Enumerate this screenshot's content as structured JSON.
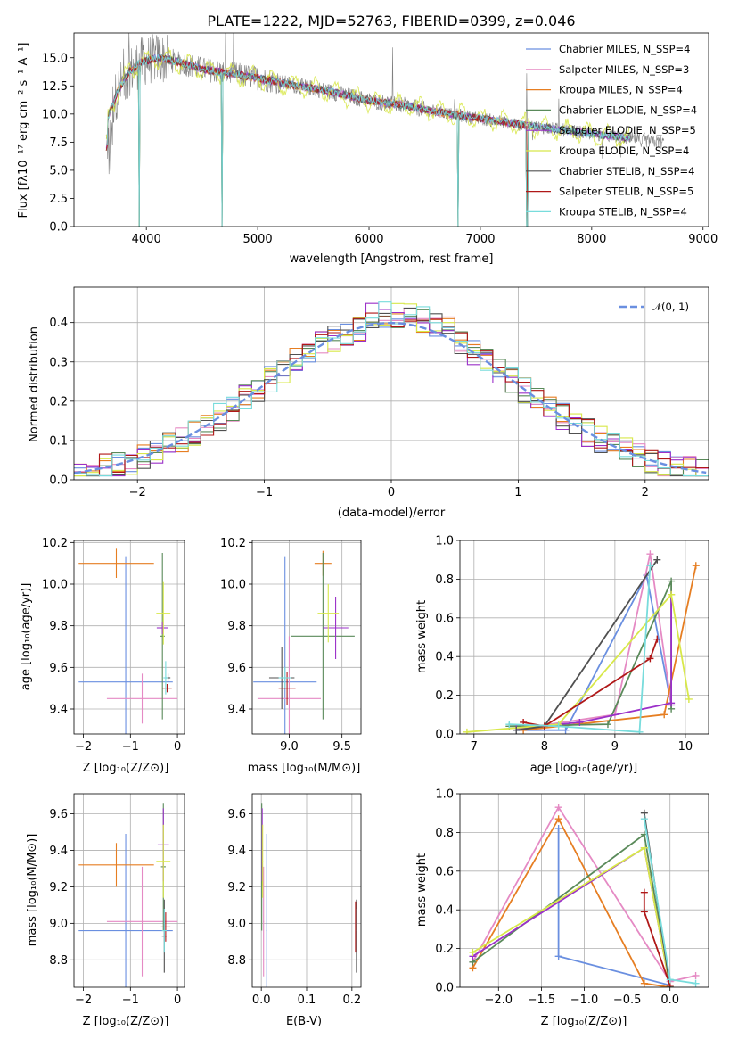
{
  "colors": {
    "spectrum": "#808080",
    "series": [
      "#6a8fe0",
      "#e58ac4",
      "#e67e22",
      "#5a8a5a",
      "#9b30c9",
      "#d8e84a",
      "#505050",
      "#b01818",
      "#78dcdc"
    ]
  },
  "chart_data": [
    {
      "id": "spectrum",
      "type": "line",
      "title": "PLATE=1222, MJD=52763, FIBERID=0399, z=0.046",
      "xlabel": "wavelength [Angstrom, rest frame]",
      "ylabel": "Flux [fλ10⁻¹⁷ erg cm⁻² s⁻¹ A⁻¹]",
      "xlim": [
        3350,
        9050
      ],
      "ylim": [
        0,
        17.2
      ],
      "xticks": [
        "4000",
        "5000",
        "6000",
        "7000",
        "8000",
        "9000"
      ],
      "yticks": [
        "0.0",
        "2.5",
        "5.0",
        "7.5",
        "10.0",
        "12.5",
        "15.0"
      ],
      "grid": false,
      "legend": "top-right",
      "legend_entries": [
        "Chabrier MILES, N_SSP=4",
        "Salpeter MILES, N_SSP=3",
        "Kroupa MILES, N_SSP=4",
        "Chabrier ELODIE, N_SSP=4",
        "Salpeter ELODIE, N_SSP=5",
        "Kroupa ELODIE, N_SSP=4",
        "Chabrier STELIB, N_SSP=4",
        "Salpeter STELIB, N_SSP=5",
        "Kroupa STELIB, N_SSP=4"
      ],
      "continuum": [
        [
          3650,
          9.6
        ],
        [
          3750,
          12.2
        ],
        [
          3850,
          13.8
        ],
        [
          3950,
          14.6
        ],
        [
          4100,
          15.0
        ],
        [
          4300,
          14.6
        ],
        [
          4500,
          14.0
        ],
        [
          4700,
          13.7
        ],
        [
          5000,
          13.2
        ],
        [
          5300,
          12.6
        ],
        [
          5600,
          12.1
        ],
        [
          6000,
          11.2
        ],
        [
          6300,
          10.8
        ],
        [
          6600,
          10.2
        ],
        [
          7000,
          9.6
        ],
        [
          7400,
          9.0
        ],
        [
          7800,
          8.5
        ],
        [
          8200,
          8.0
        ],
        [
          8500,
          7.6
        ],
        [
          8800,
          7.3
        ],
        [
          9000,
          7.1
        ]
      ],
      "absorption_dips": [
        [
          3935,
          0
        ],
        [
          4680,
          0
        ],
        [
          6800,
          0
        ],
        [
          7420,
          0
        ]
      ]
    },
    {
      "id": "residuals",
      "type": "step",
      "xlabel": "(data-model)/error",
      "ylabel": "Normed distribution",
      "xlim": [
        -2.5,
        2.5
      ],
      "ylim": [
        0,
        0.49
      ],
      "xticks": [
        "−2",
        "−1",
        "0",
        "1",
        "2"
      ],
      "yticks": [
        "0.0",
        "0.1",
        "0.2",
        "0.3",
        "0.4"
      ],
      "grid": true,
      "legend": "top-right",
      "legend_entries": [
        "𝒩(0, 1)"
      ]
    },
    {
      "id": "age_vs_Z",
      "type": "errorbar",
      "xlabel": "Z [log₁₀(Z/Z⊙)]",
      "ylabel": "age  [log₁₀(age/yr)]",
      "xlim": [
        -2.2,
        0.15
      ],
      "ylim": [
        9.28,
        10.21
      ],
      "xticks": [
        "−2",
        "−1",
        "0"
      ],
      "yticks": [
        "9.4",
        "9.6",
        "9.8",
        "10.0",
        "10.2"
      ],
      "points": [
        {
          "x": -1.1,
          "y": 9.53,
          "xerr": 1.0,
          "yerr": 0.6,
          "c": 0
        },
        {
          "x": -0.75,
          "y": 9.45,
          "xerr": 0.75,
          "yerr": 0.12,
          "c": 1
        },
        {
          "x": -1.3,
          "y": 10.1,
          "xerr": 0.8,
          "yerr": 0.07,
          "c": 2
        },
        {
          "x": -0.32,
          "y": 9.75,
          "xerr": 0.05,
          "yerr": 0.4,
          "c": 3
        },
        {
          "x": -0.32,
          "y": 9.79,
          "xerr": 0.12,
          "yerr": 0.03,
          "c": 4
        },
        {
          "x": -0.3,
          "y": 9.86,
          "xerr": 0.15,
          "yerr": 0.15,
          "c": 5
        },
        {
          "x": -0.2,
          "y": 9.55,
          "xerr": 0.05,
          "yerr": 0.02,
          "c": 6
        },
        {
          "x": -0.22,
          "y": 9.5,
          "xerr": 0.1,
          "yerr": 0.02,
          "c": 7
        },
        {
          "x": -0.25,
          "y": 9.55,
          "xerr": 0.05,
          "yerr": 0.08,
          "c": 8
        }
      ]
    },
    {
      "id": "age_vs_mass",
      "type": "errorbar",
      "xlabel": "mass [log₁₀(M/M⊙)]",
      "ylabel": "",
      "xlim": [
        8.65,
        9.68
      ],
      "ylim": [
        9.28,
        10.21
      ],
      "xticks": [
        "9.0",
        "9.5"
      ],
      "yticks": [
        "9.4",
        "9.6",
        "9.8",
        "10.0",
        "10.2"
      ],
      "points": [
        {
          "x": 8.96,
          "y": 9.53,
          "xerr": 0.3,
          "yerr": 0.6,
          "c": 0
        },
        {
          "x": 9.0,
          "y": 9.45,
          "xerr": 0.3,
          "yerr": 0.3,
          "c": 1
        },
        {
          "x": 9.32,
          "y": 10.1,
          "xerr": 0.08,
          "yerr": 0.06,
          "c": 2
        },
        {
          "x": 9.32,
          "y": 9.75,
          "xerr": 0.3,
          "yerr": 0.4,
          "c": 3
        },
        {
          "x": 9.44,
          "y": 9.79,
          "xerr": 0.12,
          "yerr": 0.15,
          "c": 4
        },
        {
          "x": 9.37,
          "y": 9.86,
          "xerr": 0.1,
          "yerr": 0.14,
          "c": 5
        },
        {
          "x": 8.93,
          "y": 9.55,
          "xerr": 0.12,
          "yerr": 0.15,
          "c": 6
        },
        {
          "x": 8.98,
          "y": 9.5,
          "xerr": 0.08,
          "yerr": 0.08,
          "c": 7
        },
        {
          "x": 8.96,
          "y": 9.55,
          "xerr": 0.06,
          "yerr": 0.05,
          "c": 8
        }
      ]
    },
    {
      "id": "weight_vs_age",
      "type": "line",
      "xlabel": "age  [log₁₀(age/yr)]",
      "ylabel": "mass weight",
      "xlim": [
        6.8,
        10.33
      ],
      "ylim": [
        0,
        1.0
      ],
      "xticks": [
        "7",
        "8",
        "9",
        "10"
      ],
      "yticks": [
        "0.0",
        "0.2",
        "0.4",
        "0.6",
        "0.8",
        "1.0"
      ],
      "grid": true,
      "series": [
        {
          "c": 0,
          "x": [
            7.6,
            8.3,
            9.45,
            9.8
          ],
          "y": [
            0.02,
            0.02,
            0.82,
            0.15
          ]
        },
        {
          "c": 1,
          "x": [
            7.7,
            9.0,
            9.5,
            9.8
          ],
          "y": [
            0.03,
            0.1,
            0.93,
            0.15
          ]
        },
        {
          "c": 2,
          "x": [
            7.7,
            9.7,
            10.15
          ],
          "y": [
            0.02,
            0.1,
            0.87
          ]
        },
        {
          "c": 3,
          "x": [
            7.5,
            8.9,
            9.8,
            9.8
          ],
          "y": [
            0.04,
            0.05,
            0.79,
            0.13
          ]
        },
        {
          "c": 4,
          "x": [
            7.6,
            8.5,
            9.8,
            9.8
          ],
          "y": [
            0.03,
            0.06,
            0.16,
            0.72
          ]
        },
        {
          "c": 5,
          "x": [
            6.9,
            8.2,
            9.8,
            10.05
          ],
          "y": [
            0.01,
            0.05,
            0.72,
            0.18
          ]
        },
        {
          "c": 6,
          "x": [
            7.6,
            8.0,
            9.6
          ],
          "y": [
            0.02,
            0.04,
            0.9
          ]
        },
        {
          "c": 7,
          "x": [
            7.7,
            8.0,
            9.5,
            9.6
          ],
          "y": [
            0.06,
            0.04,
            0.39,
            0.49
          ]
        },
        {
          "c": 8,
          "x": [
            7.5,
            8.2,
            9.35,
            9.5
          ],
          "y": [
            0.05,
            0.04,
            0.01,
            0.87
          ]
        }
      ]
    },
    {
      "id": "mass_vs_Z",
      "type": "errorbar",
      "xlabel": "Z [log₁₀(Z/Z⊙)]",
      "ylabel": "mass [log₁₀(M/M⊙)]",
      "xlim": [
        -2.2,
        0.15
      ],
      "ylim": [
        8.65,
        9.71
      ],
      "xticks": [
        "−2",
        "−1",
        "0"
      ],
      "yticks": [
        "8.8",
        "9.0",
        "9.2",
        "9.4",
        "9.6"
      ],
      "points": [
        {
          "x": -1.1,
          "y": 8.96,
          "xerr": 1.0,
          "yerr": 0.53,
          "c": 0
        },
        {
          "x": -0.75,
          "y": 9.01,
          "xerr": 0.75,
          "yerr": 0.3,
          "c": 1
        },
        {
          "x": -1.3,
          "y": 9.32,
          "xerr": 0.8,
          "yerr": 0.12,
          "c": 2
        },
        {
          "x": -0.3,
          "y": 9.31,
          "xerr": 0.05,
          "yerr": 0.35,
          "c": 3
        },
        {
          "x": -0.3,
          "y": 9.43,
          "xerr": 0.12,
          "yerr": 0.2,
          "c": 4
        },
        {
          "x": -0.3,
          "y": 9.34,
          "xerr": 0.15,
          "yerr": 0.2,
          "c": 5
        },
        {
          "x": -0.28,
          "y": 8.93,
          "xerr": 0.05,
          "yerr": 0.2,
          "c": 6
        },
        {
          "x": -0.25,
          "y": 8.98,
          "xerr": 0.1,
          "yerr": 0.08,
          "c": 7
        },
        {
          "x": -0.28,
          "y": 8.96,
          "xerr": 0.05,
          "yerr": 0.12,
          "c": 8
        }
      ]
    },
    {
      "id": "mass_vs_ebv",
      "type": "errorbar",
      "xlabel": "E(B-V)",
      "ylabel": "",
      "xlim": [
        -0.02,
        0.22
      ],
      "ylim": [
        8.65,
        9.71
      ],
      "xticks": [
        "0.0",
        "0.1",
        "0.2"
      ],
      "yticks": [
        "8.8",
        "9.0",
        "9.2",
        "9.4",
        "9.6"
      ],
      "points": [
        {
          "x": 0.012,
          "y": 8.96,
          "xerr": 0.001,
          "yerr": 0.53,
          "c": 0
        },
        {
          "x": 0.005,
          "y": 9.01,
          "xerr": 0.001,
          "yerr": 0.3,
          "c": 1
        },
        {
          "x": 0.002,
          "y": 9.32,
          "xerr": 0.001,
          "yerr": 0.12,
          "c": 2
        },
        {
          "x": 0.001,
          "y": 9.31,
          "xerr": 0.001,
          "yerr": 0.35,
          "c": 3
        },
        {
          "x": 0.002,
          "y": 9.43,
          "xerr": 0.001,
          "yerr": 0.2,
          "c": 4
        },
        {
          "x": 0.003,
          "y": 9.34,
          "xerr": 0.001,
          "yerr": 0.2,
          "c": 5
        },
        {
          "x": 0.21,
          "y": 8.93,
          "xerr": 0.001,
          "yerr": 0.2,
          "c": 6
        },
        {
          "x": 0.208,
          "y": 8.98,
          "xerr": 0.001,
          "yerr": 0.14,
          "c": 7
        },
        {
          "x": 0.211,
          "y": 8.96,
          "xerr": 0.001,
          "yerr": 0.12,
          "c": 8
        }
      ]
    },
    {
      "id": "weight_vs_Z",
      "type": "line",
      "xlabel": "Z [log₁₀(Z/Z⊙)]",
      "ylabel": "mass weight",
      "xlim": [
        -2.45,
        0.45
      ],
      "ylim": [
        0,
        1.0
      ],
      "xticks": [
        "−2.0",
        "−1.5",
        "−1.0",
        "−0.5",
        "0.0"
      ],
      "yticks": [
        "0.0",
        "0.2",
        "0.4",
        "0.6",
        "0.8",
        "1.0"
      ],
      "grid": true,
      "series": [
        {
          "c": 0,
          "x": [
            -1.3,
            -1.3,
            0.0,
            0.0
          ],
          "y": [
            0.82,
            0.16,
            0.01,
            0.0
          ]
        },
        {
          "c": 1,
          "x": [
            -2.3,
            -1.3,
            0.0,
            0.3
          ],
          "y": [
            0.13,
            0.93,
            0.03,
            0.06
          ]
        },
        {
          "c": 2,
          "x": [
            -2.3,
            -1.3,
            -0.3,
            0.0
          ],
          "y": [
            0.1,
            0.87,
            0.02,
            0.0
          ]
        },
        {
          "c": 3,
          "x": [
            -2.3,
            -0.3,
            0.0
          ],
          "y": [
            0.13,
            0.79,
            0.0
          ]
        },
        {
          "c": 4,
          "x": [
            -2.3,
            -0.3,
            0.0
          ],
          "y": [
            0.16,
            0.72,
            0.0
          ]
        },
        {
          "c": 5,
          "x": [
            -2.3,
            -0.3,
            0.0
          ],
          "y": [
            0.18,
            0.72,
            0.0
          ]
        },
        {
          "c": 6,
          "x": [
            -0.3,
            0.0
          ],
          "y": [
            0.9,
            0.0
          ]
        },
        {
          "c": 7,
          "x": [
            -0.3,
            -0.3,
            0.0
          ],
          "y": [
            0.49,
            0.39,
            0.01
          ]
        },
        {
          "c": 8,
          "x": [
            -0.3,
            0.0,
            0.3
          ],
          "y": [
            0.87,
            0.04,
            0.02
          ]
        }
      ]
    }
  ]
}
